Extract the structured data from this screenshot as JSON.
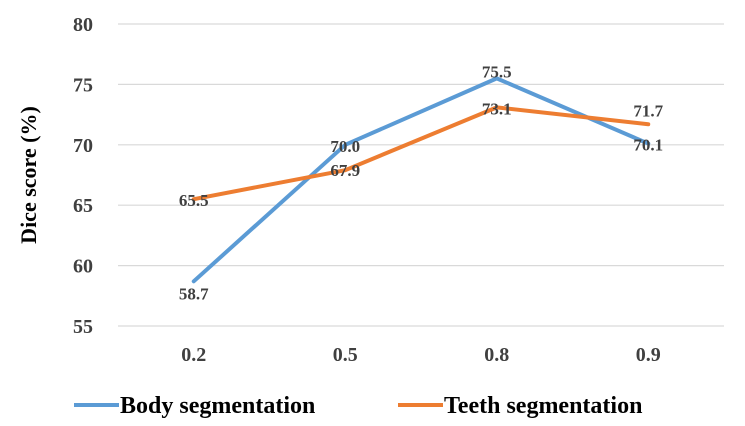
{
  "chart_data": {
    "type": "line",
    "title": "",
    "xlabel": "",
    "ylabel": "Dice score  (%)",
    "categories": [
      "0.2",
      "0.5",
      "0.8",
      "0.9"
    ],
    "ylim": [
      55,
      80
    ],
    "yticks": [
      55,
      60,
      65,
      70,
      75,
      80
    ],
    "grid": true,
    "legend_position": "bottom",
    "series": [
      {
        "name": "Body segmentation",
        "color": "#5B9BD5",
        "values": [
          58.7,
          70.0,
          75.5,
          70.1
        ],
        "labels": [
          "58.7",
          "70.0",
          "75.5",
          "70.1"
        ]
      },
      {
        "name": "Teeth segmentation",
        "color": "#ED7D31",
        "values": [
          65.5,
          67.9,
          73.1,
          71.7
        ],
        "labels": [
          "65.5",
          "67.9",
          "73.1",
          "71.7"
        ]
      }
    ]
  }
}
